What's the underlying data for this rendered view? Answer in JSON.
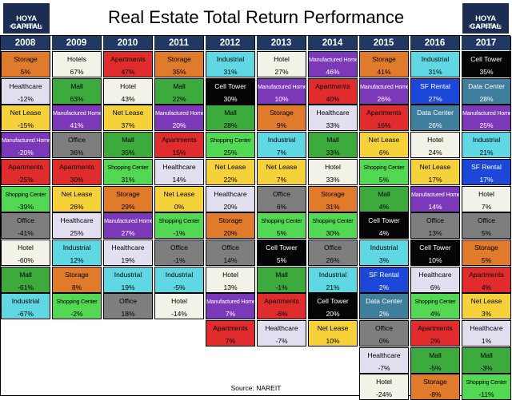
{
  "title": "Real Estate Total Return Performance",
  "logo": {
    "name": "HOYA CAPITAL",
    "sub": "REAL ESTATE"
  },
  "source": "Source: NAREIT",
  "sector_colors": {
    "Storage": "#e07b2c",
    "Hotels": "#f2f2e6",
    "Hotel": "#f2f2e6",
    "Apartments": "#e02c2c",
    "Industrial": "#5fd8e4",
    "Cell Tower": "#050505",
    "Manufactured Home": "#7b38b8",
    "Healthcare": "#e2dff0",
    "Mall": "#3caa3c",
    "SF Rental": "#1c47d8",
    "Data Center": "#3f7e9c",
    "Net Lease": "#f6d23a",
    "Office": "#7e7e7e",
    "Shopping Center": "#52d852"
  },
  "chart_data": {
    "type": "table",
    "title": "Real Estate Total Return Performance",
    "columns": [
      {
        "year": "2008",
        "rows": [
          {
            "sector": "Storage",
            "value": "5%"
          },
          {
            "sector": "Healthcare",
            "value": "-12%"
          },
          {
            "sector": "Net Lease",
            "value": "-15%"
          },
          {
            "sector": "Manufactured Home",
            "value": "-20%"
          },
          {
            "sector": "Apartments",
            "value": "-25%"
          },
          {
            "sector": "Shopping Center",
            "value": "-39%"
          },
          {
            "sector": "Office",
            "value": "-41%"
          },
          {
            "sector": "Hotel",
            "value": "-60%"
          },
          {
            "sector": "Mall",
            "value": "-61%"
          },
          {
            "sector": "Industrial",
            "value": "-67%"
          }
        ]
      },
      {
        "year": "2009",
        "rows": [
          {
            "sector": "Hotels",
            "value": "67%"
          },
          {
            "sector": "Mall",
            "value": "63%"
          },
          {
            "sector": "Manufactured Home",
            "value": "41%"
          },
          {
            "sector": "Office",
            "value": "36%"
          },
          {
            "sector": "Apartments",
            "value": "30%"
          },
          {
            "sector": "Net Lease",
            "value": "26%"
          },
          {
            "sector": "Healthcare",
            "value": "25%"
          },
          {
            "sector": "Industrial",
            "value": "12%"
          },
          {
            "sector": "Storage",
            "value": "8%"
          },
          {
            "sector": "Shopping Center",
            "value": "-2%"
          }
        ]
      },
      {
        "year": "2010",
        "rows": [
          {
            "sector": "Apartments",
            "value": "47%"
          },
          {
            "sector": "Hotel",
            "value": "43%"
          },
          {
            "sector": "Net Lease",
            "value": "37%"
          },
          {
            "sector": "Mall",
            "value": "35%"
          },
          {
            "sector": "Shopping Center",
            "value": "31%"
          },
          {
            "sector": "Storage",
            "value": "29%"
          },
          {
            "sector": "Manufactured Home",
            "value": "27%"
          },
          {
            "sector": "Healthcare",
            "value": "19%"
          },
          {
            "sector": "Industrial",
            "value": "19%"
          },
          {
            "sector": "Office",
            "value": "18%"
          }
        ]
      },
      {
        "year": "2011",
        "rows": [
          {
            "sector": "Storage",
            "value": "35%"
          },
          {
            "sector": "Mall",
            "value": "22%"
          },
          {
            "sector": "Manufactured Home",
            "value": "20%"
          },
          {
            "sector": "Apartments",
            "value": "15%"
          },
          {
            "sector": "Healthcare",
            "value": "14%"
          },
          {
            "sector": "Net Lease",
            "value": "0%"
          },
          {
            "sector": "Shopping Center",
            "value": "-1%"
          },
          {
            "sector": "Office",
            "value": "-1%"
          },
          {
            "sector": "Industrial",
            "value": "-5%"
          },
          {
            "sector": "Hotel",
            "value": "-14%"
          }
        ]
      },
      {
        "year": "2012",
        "rows": [
          {
            "sector": "Industrial",
            "value": "31%"
          },
          {
            "sector": "Cell Tower",
            "value": "30%"
          },
          {
            "sector": "Mall",
            "value": "28%"
          },
          {
            "sector": "Shopping Center",
            "value": "25%"
          },
          {
            "sector": "Net Lease",
            "value": "22%"
          },
          {
            "sector": "Healthcare",
            "value": "20%"
          },
          {
            "sector": "Storage",
            "value": "20%"
          },
          {
            "sector": "Office",
            "value": "14%"
          },
          {
            "sector": "Hotel",
            "value": "13%"
          },
          {
            "sector": "Manufactured Home",
            "value": "7%"
          },
          {
            "sector": "Apartments",
            "value": "7%"
          }
        ]
      },
      {
        "year": "2013",
        "rows": [
          {
            "sector": "Hotel",
            "value": "27%"
          },
          {
            "sector": "Manufactured Home",
            "value": "10%"
          },
          {
            "sector": "Storage",
            "value": "9%"
          },
          {
            "sector": "Industrial",
            "value": "7%"
          },
          {
            "sector": "Net Lease",
            "value": "7%"
          },
          {
            "sector": "Office",
            "value": "6%"
          },
          {
            "sector": "Shopping Center",
            "value": "5%"
          },
          {
            "sector": "Cell Tower",
            "value": "5%"
          },
          {
            "sector": "Mall",
            "value": "-1%"
          },
          {
            "sector": "Apartments",
            "value": "-6%"
          },
          {
            "sector": "Healthcare",
            "value": "-7%"
          }
        ]
      },
      {
        "year": "2014",
        "rows": [
          {
            "sector": "Manufactured Home",
            "value": "46%"
          },
          {
            "sector": "Apartments",
            "value": "40%"
          },
          {
            "sector": "Healthcare",
            "value": "33%"
          },
          {
            "sector": "Mall",
            "value": "33%"
          },
          {
            "sector": "Hotel",
            "value": "33%"
          },
          {
            "sector": "Storage",
            "value": "31%"
          },
          {
            "sector": "Shopping Center",
            "value": "30%"
          },
          {
            "sector": "Office",
            "value": "26%"
          },
          {
            "sector": "Industrial",
            "value": "21%"
          },
          {
            "sector": "Cell Tower",
            "value": "20%"
          },
          {
            "sector": "Net Lease",
            "value": "10%"
          }
        ]
      },
      {
        "year": "2015",
        "rows": [
          {
            "sector": "Storage",
            "value": "41%"
          },
          {
            "sector": "Manufactured Home",
            "value": "26%"
          },
          {
            "sector": "Apartments",
            "value": "16%"
          },
          {
            "sector": "Net Lease",
            "value": "6%"
          },
          {
            "sector": "Shopping Center",
            "value": "5%"
          },
          {
            "sector": "Mall",
            "value": "4%"
          },
          {
            "sector": "Cell Tower",
            "value": "4%"
          },
          {
            "sector": "Industrial",
            "value": "3%"
          },
          {
            "sector": "SF Rental",
            "value": "2%"
          },
          {
            "sector": "Data Center",
            "value": "2%"
          },
          {
            "sector": "Office",
            "value": "0%"
          },
          {
            "sector": "Healthcare",
            "value": "-7%"
          },
          {
            "sector": "Hotel",
            "value": "-24%"
          }
        ]
      },
      {
        "year": "2016",
        "rows": [
          {
            "sector": "Industrial",
            "value": "31%"
          },
          {
            "sector": "SF Rental",
            "value": "27%"
          },
          {
            "sector": "Data Center",
            "value": "26%"
          },
          {
            "sector": "Hotel",
            "value": "24%"
          },
          {
            "sector": "Net Lease",
            "value": "17%"
          },
          {
            "sector": "Manufactured Home",
            "value": "14%"
          },
          {
            "sector": "Office",
            "value": "13%"
          },
          {
            "sector": "Cell Tower",
            "value": "10%"
          },
          {
            "sector": "Healthcare",
            "value": "6%"
          },
          {
            "sector": "Shopping Center",
            "value": "4%"
          },
          {
            "sector": "Apartments",
            "value": "2%"
          },
          {
            "sector": "Mall",
            "value": "-5%"
          },
          {
            "sector": "Storage",
            "value": "-8%"
          }
        ]
      },
      {
        "year": "2017",
        "rows": [
          {
            "sector": "Cell Tower",
            "value": "35%"
          },
          {
            "sector": "Data Center",
            "value": "28%"
          },
          {
            "sector": "Manufactured Home",
            "value": "25%"
          },
          {
            "sector": "Industrial",
            "value": "21%"
          },
          {
            "sector": "SF Rental",
            "value": "17%"
          },
          {
            "sector": "Hotel",
            "value": "7%"
          },
          {
            "sector": "Office",
            "value": "5%"
          },
          {
            "sector": "Storage",
            "value": "5%"
          },
          {
            "sector": "Apartments",
            "value": "4%"
          },
          {
            "sector": "Net Lease",
            "value": "3%"
          },
          {
            "sector": "Healthcare",
            "value": "1%"
          },
          {
            "sector": "Mall",
            "value": "-3%"
          },
          {
            "sector": "Shopping Center",
            "value": "-11%"
          }
        ]
      }
    ]
  }
}
